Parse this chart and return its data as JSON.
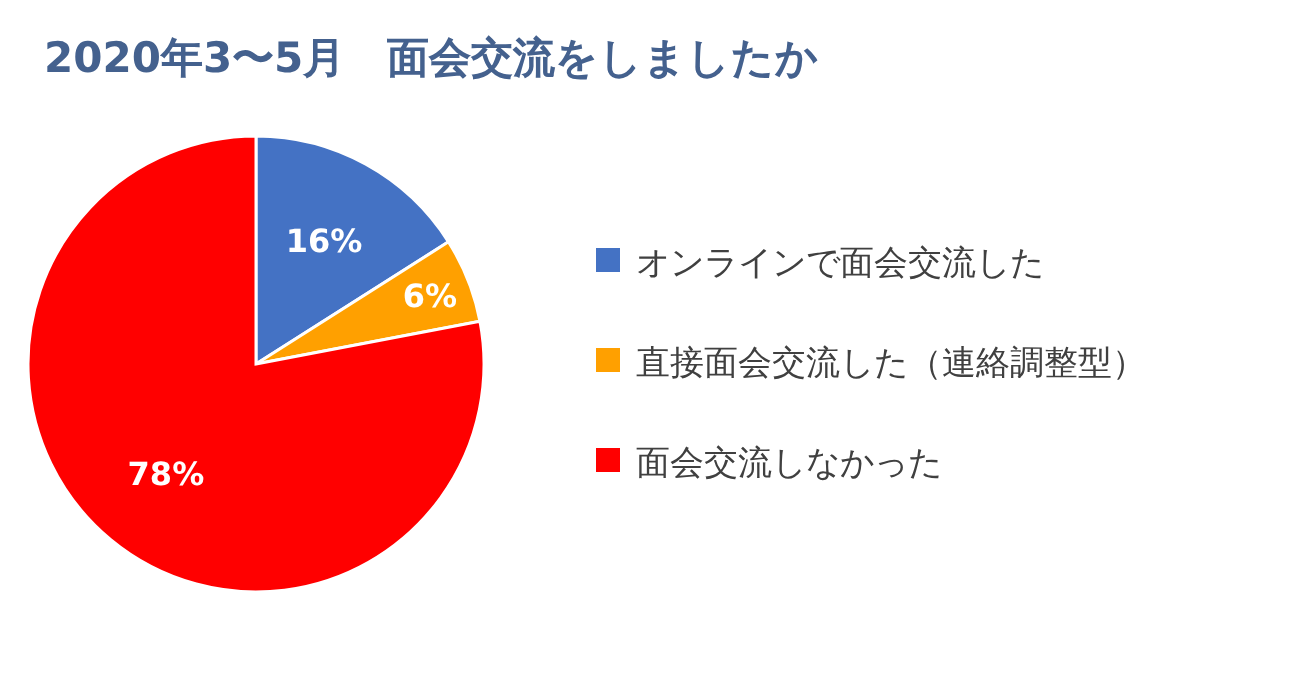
{
  "chart_data": {
    "type": "pie",
    "title": "2020年3〜5月　面会交流をしましたか",
    "categories": [
      "オンラインで面会交流した",
      "直接面会交流した（連絡調整型）",
      "面会交流しなかった"
    ],
    "values": [
      16,
      6,
      78
    ],
    "colors": [
      "#4472c4",
      "#ffa000",
      "#ff0000"
    ],
    "value_labels": [
      "16%",
      "6%",
      "78%"
    ],
    "legend": "right"
  }
}
